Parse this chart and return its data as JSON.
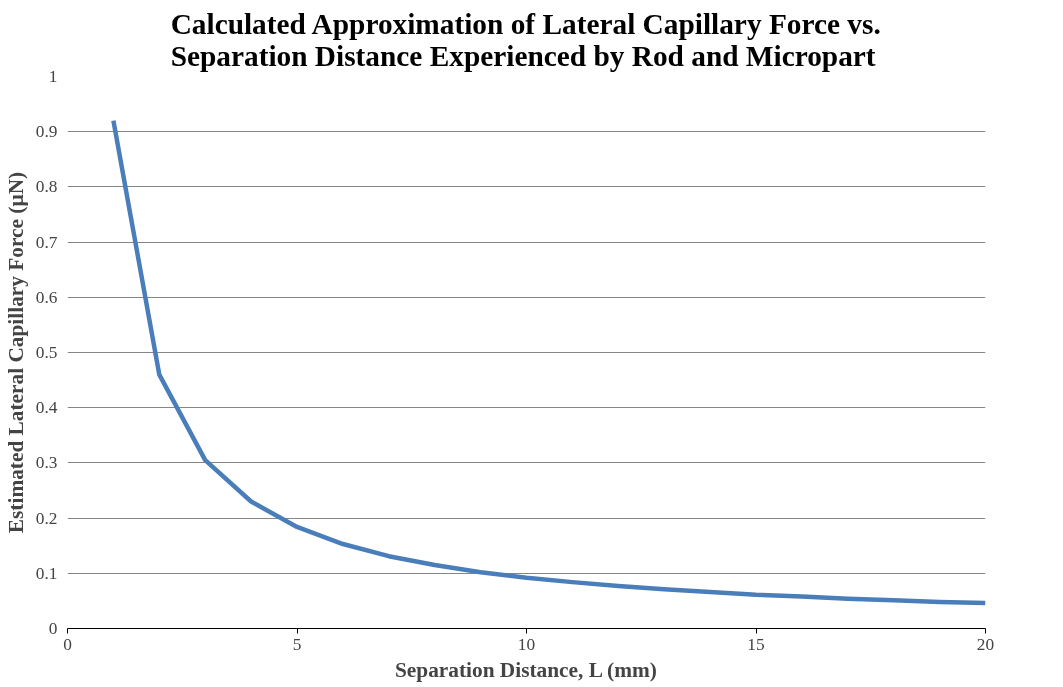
{
  "chart_data": {
    "type": "line",
    "title": "Calculated Approximation of Lateral Capillary Force vs. Separation Distance Experienced by Rod and Micropart",
    "xlabel": "Separation Distance, L (mm)",
    "ylabel": "Estimated Lateral Capillary Force (µN)",
    "x": [
      1,
      2,
      3,
      4,
      5,
      6,
      7,
      8,
      9,
      10,
      11,
      12,
      13,
      14,
      15,
      16,
      17,
      18,
      19,
      20
    ],
    "series": [
      {
        "color": "#4a7ebb",
        "values": [
          0.92,
          0.46,
          0.305,
          0.23,
          0.184,
          0.153,
          0.131,
          0.115,
          0.102,
          0.092,
          0.084,
          0.077,
          0.071,
          0.066,
          0.061,
          0.058,
          0.054,
          0.051,
          0.048,
          0.046
        ]
      }
    ],
    "xlim": [
      0,
      20
    ],
    "xticks": [
      0,
      5,
      10,
      15,
      20
    ],
    "ylim": [
      0,
      1
    ],
    "yticks": [
      0,
      0.1,
      0.2,
      0.3,
      0.4,
      0.5,
      0.6,
      0.7,
      0.8,
      0.9,
      1
    ],
    "grid": "y",
    "marker": "none",
    "line_style": "solid"
  }
}
